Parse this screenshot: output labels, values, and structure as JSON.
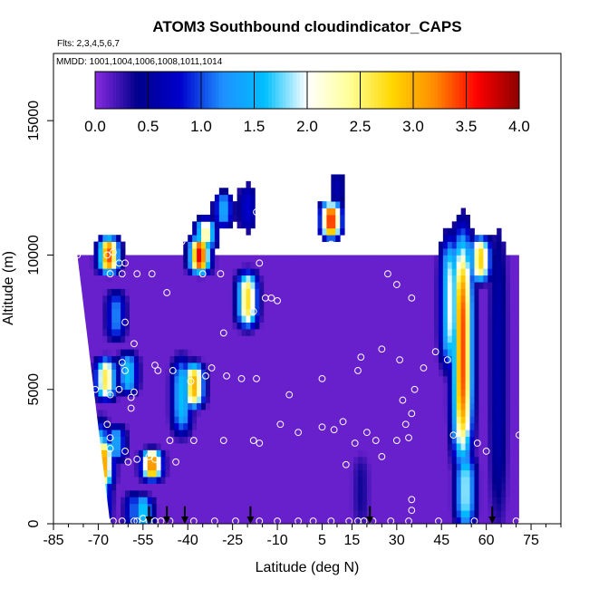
{
  "chart_data": {
    "type": "heatmap",
    "title": "ATOM3 Southbound cloudindicator_CAPS",
    "subtitle_flights": "Flts: 2,3,4,5,6,7",
    "subtitle_dates": "MMDD: 1001,1004,1006,1008,1011,1014",
    "xlabel": "Latitude (deg N)",
    "ylabel": "Altitude (m)",
    "xlim": [
      -85,
      85
    ],
    "ylim": [
      0,
      17500
    ],
    "x_ticks": [
      -85,
      -70,
      -55,
      -40,
      -25,
      -10,
      5,
      15,
      30,
      45,
      60,
      75
    ],
    "x_tick_labels": [
      "-85",
      "-70",
      "-55",
      "-40",
      "-25",
      "-10",
      "5",
      "15",
      "30",
      "45",
      "60",
      "75"
    ],
    "y_ticks": [
      0,
      5000,
      10000,
      15000
    ],
    "y_tick_labels": [
      "0",
      "5000",
      "10000",
      "15000"
    ],
    "colorbar": {
      "min": 0,
      "max": 4,
      "ticks": [
        0.0,
        0.5,
        1.0,
        1.5,
        2.0,
        2.5,
        3.0,
        3.5,
        4.0
      ],
      "tick_labels": [
        "0.0",
        "0.5",
        "1.0",
        "1.5",
        "2.0",
        "2.5",
        "3.0",
        "3.5",
        "4.0"
      ],
      "colors": [
        "#8a2be2",
        "#00008b",
        "#0000cd",
        "#1e90ff",
        "#00bfff",
        "#ffffff",
        "#ffff99",
        "#ffd700",
        "#ff8c00",
        "#ff0000",
        "#8b0000"
      ]
    },
    "background_value": 0.1,
    "domain": {
      "lat_edge_bottom": [
        -66,
        71
      ],
      "lat_edge_top": [
        -77,
        71
      ],
      "alt_top": 10000
    },
    "features": [
      {
        "lat": -69.5,
        "alt_min": 0,
        "alt_max": 3500,
        "value": 2.3
      },
      {
        "lat": -68.5,
        "alt_min": 1500,
        "alt_max": 3000,
        "value": 3.2
      },
      {
        "lat": -67.5,
        "alt_min": 4800,
        "alt_max": 6000,
        "value": 2.6
      },
      {
        "lat": -66.5,
        "alt_min": 9500,
        "alt_max": 10500,
        "value": 3.4
      },
      {
        "lat": -64,
        "alt_min": 7000,
        "alt_max": 8500,
        "value": 1.2
      },
      {
        "lat": -64,
        "alt_min": 2500,
        "alt_max": 3500,
        "value": 1.4
      },
      {
        "lat": -60,
        "alt_min": 5000,
        "alt_max": 6200,
        "value": 1.6
      },
      {
        "lat": -58,
        "alt_min": 0,
        "alt_max": 1000,
        "value": 1.1
      },
      {
        "lat": -52,
        "alt_min": 1800,
        "alt_max": 2600,
        "value": 3.3
      },
      {
        "lat": -55,
        "alt_min": 0,
        "alt_max": 900,
        "value": 1.7
      },
      {
        "lat": -42,
        "alt_min": 3500,
        "alt_max": 6000,
        "value": 1.6
      },
      {
        "lat": -38,
        "alt_min": 4500,
        "alt_max": 5800,
        "value": 3.0
      },
      {
        "lat": -36,
        "alt_min": 9500,
        "alt_max": 10500,
        "value": 3.7
      },
      {
        "lat": -34,
        "alt_min": 10400,
        "alt_max": 11200,
        "value": 2.4
      },
      {
        "lat": -28,
        "alt_min": 11200,
        "alt_max": 12200,
        "value": 1.4
      },
      {
        "lat": -20,
        "alt_min": 7500,
        "alt_max": 9200,
        "value": 2.7
      },
      {
        "lat": -20,
        "alt_min": 11000,
        "alt_max": 12500,
        "value": 0.8
      },
      {
        "lat": 8,
        "alt_min": 10800,
        "alt_max": 11800,
        "value": 3.6
      },
      {
        "lat": 10,
        "alt_min": 12000,
        "alt_max": 13000,
        "value": 0.6
      },
      {
        "lat": 52,
        "alt_min": 2500,
        "alt_max": 10500,
        "value": 3.4
      },
      {
        "lat": 48,
        "alt_min": 6000,
        "alt_max": 10500,
        "value": 2.0
      },
      {
        "lat": 58,
        "alt_min": 9200,
        "alt_max": 10500,
        "value": 2.8
      },
      {
        "lat": 53,
        "alt_min": 0,
        "alt_max": 2500,
        "value": 1.9
      },
      {
        "lat": 64,
        "alt_min": 0,
        "alt_max": 11500,
        "value": 0.6
      },
      {
        "lat": 18,
        "alt_min": 0,
        "alt_max": 2500,
        "value": 0.35
      }
    ],
    "observations": [
      [
        -84,
        10000
      ],
      [
        -77,
        10000
      ],
      [
        -67,
        10000
      ],
      [
        -65,
        10100
      ],
      [
        -66,
        9300
      ],
      [
        -63,
        9700
      ],
      [
        -61,
        9700
      ],
      [
        -62,
        9300
      ],
      [
        -57,
        9300
      ],
      [
        -52,
        9300
      ],
      [
        -51,
        10900
      ],
      [
        -47,
        8600
      ],
      [
        -45,
        11000
      ],
      [
        -42,
        10500
      ],
      [
        -35,
        9300
      ],
      [
        -29,
        9300
      ],
      [
        -16,
        9700
      ],
      [
        -14,
        8400
      ],
      [
        -17,
        11600
      ],
      [
        -14,
        12600
      ],
      [
        -5,
        11200
      ],
      [
        -1,
        10400
      ],
      [
        0,
        10400
      ],
      [
        8,
        10400
      ],
      [
        12,
        10400
      ],
      [
        23,
        12500
      ],
      [
        35,
        10500
      ],
      [
        40,
        10600
      ],
      [
        27,
        9300
      ],
      [
        30,
        8900
      ],
      [
        35,
        8400
      ],
      [
        68,
        11800
      ],
      [
        -61,
        7500
      ],
      [
        -58,
        6700
      ],
      [
        -28,
        7100
      ],
      [
        -18,
        7900
      ],
      [
        -10,
        8300
      ],
      [
        -12,
        8400
      ],
      [
        -62,
        6000
      ],
      [
        -61,
        5700
      ],
      [
        -63,
        5000
      ],
      [
        -59,
        4700
      ],
      [
        -51,
        5900
      ],
      [
        -50,
        5700
      ],
      [
        -45,
        5700
      ],
      [
        -32,
        5800
      ],
      [
        -27,
        5500
      ],
      [
        -22,
        5400
      ],
      [
        -17,
        5400
      ],
      [
        -34,
        5500
      ],
      [
        -39,
        5300
      ],
      [
        -66,
        4800
      ],
      [
        -71,
        5000
      ],
      [
        -58,
        4900
      ],
      [
        -59,
        4300
      ],
      [
        -67,
        3700
      ],
      [
        -66,
        3200
      ],
      [
        -66,
        2800
      ],
      [
        -61,
        2700
      ],
      [
        -60,
        2300
      ],
      [
        -57,
        2400
      ],
      [
        -53,
        2500
      ],
      [
        -51,
        2400
      ],
      [
        -46,
        3100
      ],
      [
        -44,
        2300
      ],
      [
        -38,
        3100
      ],
      [
        -28,
        3100
      ],
      [
        -16,
        3000
      ],
      [
        -9,
        3700
      ],
      [
        -18,
        3100
      ],
      [
        -6,
        4800
      ],
      [
        -3,
        3400
      ],
      [
        5,
        3600
      ],
      [
        9,
        3500
      ],
      [
        16,
        3000
      ],
      [
        18,
        6200
      ],
      [
        17,
        5700
      ],
      [
        25,
        6500
      ],
      [
        31,
        6100
      ],
      [
        36,
        5000
      ],
      [
        43,
        6400
      ],
      [
        47,
        6100
      ],
      [
        39,
        5800
      ],
      [
        32,
        4600
      ],
      [
        35,
        4100
      ],
      [
        33,
        3700
      ],
      [
        34,
        3200
      ],
      [
        30,
        3100
      ],
      [
        23,
        3100
      ],
      [
        20,
        3400
      ],
      [
        5,
        5400
      ],
      [
        12,
        3800
      ],
      [
        13,
        2200
      ],
      [
        25,
        2500
      ],
      [
        49,
        3300
      ],
      [
        57,
        3000
      ],
      [
        60,
        2700
      ],
      [
        71,
        3300
      ],
      [
        -70,
        100
      ],
      [
        -67,
        100
      ],
      [
        -65,
        100
      ],
      [
        -62,
        100
      ],
      [
        -58,
        100
      ],
      [
        -57,
        100
      ],
      [
        -55,
        200
      ],
      [
        -53,
        100
      ],
      [
        -51,
        100
      ],
      [
        -49,
        100
      ],
      [
        -46,
        100
      ],
      [
        -38,
        100
      ],
      [
        -31,
        100
      ],
      [
        -24,
        100
      ],
      [
        -16,
        100
      ],
      [
        -10,
        100
      ],
      [
        -3,
        100
      ],
      [
        2,
        100
      ],
      [
        8,
        100
      ],
      [
        14,
        100
      ],
      [
        17,
        100
      ],
      [
        19,
        100
      ],
      [
        22,
        100
      ],
      [
        28,
        100
      ],
      [
        34,
        100
      ],
      [
        35,
        900
      ],
      [
        35,
        500
      ],
      [
        44,
        100
      ],
      [
        56,
        100
      ],
      [
        70,
        100
      ]
    ],
    "arrows_lat": [
      -53,
      -47,
      -41,
      -19,
      21,
      62
    ]
  }
}
